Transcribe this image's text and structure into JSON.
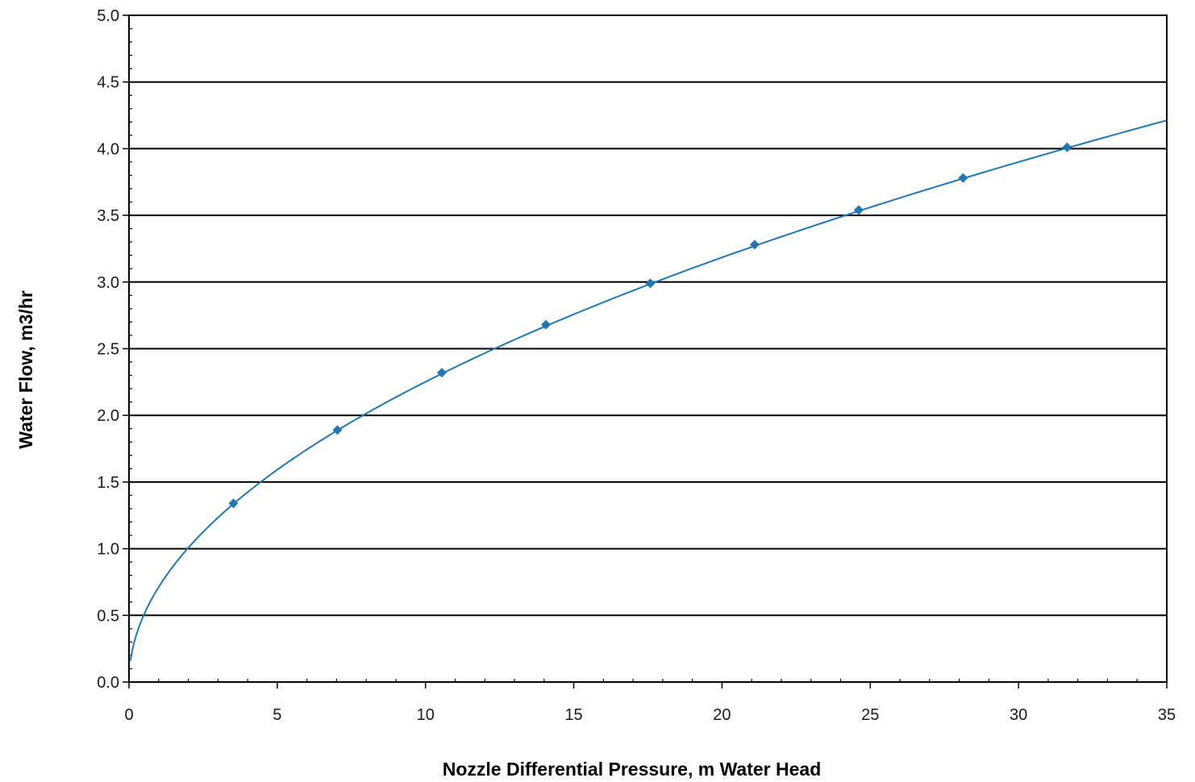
{
  "chart_data": {
    "type": "line",
    "title": "",
    "xlabel": "Nozzle Differential Pressure, m Water Head",
    "ylabel": "Water Flow, m3/hr",
    "xlim": [
      0,
      35
    ],
    "ylim": [
      0,
      5.0
    ],
    "x_ticks": [
      "0",
      "5",
      "10",
      "15",
      "20",
      "25",
      "30",
      "35"
    ],
    "y_ticks": [
      "0.0",
      "0.5",
      "1.0",
      "1.5",
      "2.0",
      "2.5",
      "3.0",
      "3.5",
      "4.0",
      "4.5",
      "5.0"
    ],
    "grid": "horizontal",
    "legend": "none",
    "series": [
      {
        "color": "#1f77b4",
        "marker": "diamond",
        "points": [
          {
            "x": 3.52,
            "y": 1.34
          },
          {
            "x": 7.03,
            "y": 1.89
          },
          {
            "x": 10.55,
            "y": 2.32
          },
          {
            "x": 14.06,
            "y": 2.68
          },
          {
            "x": 17.58,
            "y": 2.99
          },
          {
            "x": 21.1,
            "y": 3.28
          },
          {
            "x": 24.61,
            "y": 3.54
          },
          {
            "x": 28.13,
            "y": 3.78
          },
          {
            "x": 31.64,
            "y": 4.01
          }
        ],
        "trendline": {
          "type": "power",
          "coefficient": 0.712,
          "exponent": 0.5,
          "x_range": [
            0.05,
            35
          ]
        }
      }
    ]
  }
}
